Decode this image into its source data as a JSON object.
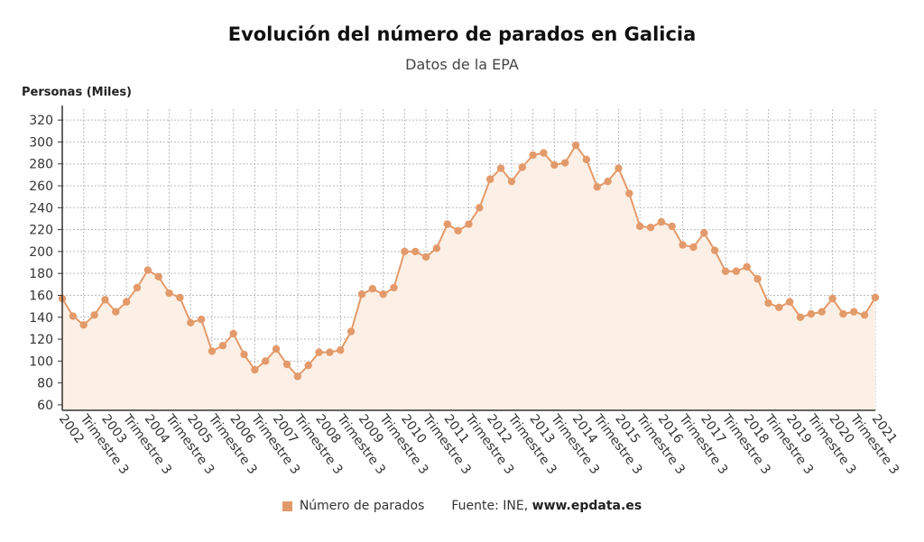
{
  "title": "Evolución del número de parados en Galicia",
  "subtitle": "Datos de la EPA",
  "y_axis_label": "Personas (Miles)",
  "legend_label": "Número de parados",
  "source_prefix": "Fuente: INE, ",
  "source_site": "www.epdata.es",
  "colors": {
    "series": "#e39a6a",
    "fill": "#fcefe5",
    "grid": "#bbbbbb",
    "axis": "#333333"
  },
  "chart_data": {
    "type": "line",
    "title": "Evolución del número de parados en Galicia",
    "subtitle": "Datos de la EPA",
    "ylabel": "Personas (Miles)",
    "ylim": [
      55,
      330
    ],
    "yticks": [
      60,
      80,
      100,
      120,
      140,
      160,
      180,
      200,
      220,
      240,
      260,
      280,
      300,
      320
    ],
    "grid": true,
    "legend": "bottom-center",
    "x_tick_labels": [
      "2002",
      "Trimestre 3",
      "2003",
      "Trimestre 3",
      "2004",
      "Trimestre 3",
      "2005",
      "Trimestre 3",
      "2006",
      "Trimestre 3",
      "2007",
      "Trimestre 3",
      "2008",
      "Trimestre 3",
      "2009",
      "Trimestre 3",
      "2010",
      "Trimestre 3",
      "2011",
      "Trimestre 3",
      "2012",
      "Trimestre 3",
      "2013",
      "Trimestre 3",
      "2014",
      "Trimestre 3",
      "2015",
      "Trimestre 3",
      "2016",
      "Trimestre 3",
      "2017",
      "Trimestre 3",
      "2018",
      "Trimestre 3",
      "2019",
      "Trimestre 3",
      "2020",
      "Trimestre 3",
      "2021",
      "Trimestre 3"
    ],
    "series": [
      {
        "name": "Número de parados",
        "values": [
          157,
          141,
          133,
          142,
          156,
          145,
          154,
          167,
          183,
          177,
          162,
          158,
          135,
          138,
          109,
          114,
          125,
          106,
          92,
          100,
          111,
          97,
          86,
          96,
          108,
          108,
          110,
          127,
          161,
          166,
          161,
          167,
          200,
          200,
          195,
          203,
          225,
          219,
          225,
          240,
          266,
          276,
          264,
          277,
          288,
          290,
          279,
          281,
          297,
          284,
          259,
          264,
          276,
          253,
          223,
          222,
          227,
          223,
          206,
          204,
          217,
          201,
          182,
          182,
          186,
          175,
          153,
          149,
          154,
          140,
          143,
          145,
          157,
          143,
          145,
          142,
          158
        ]
      }
    ]
  }
}
